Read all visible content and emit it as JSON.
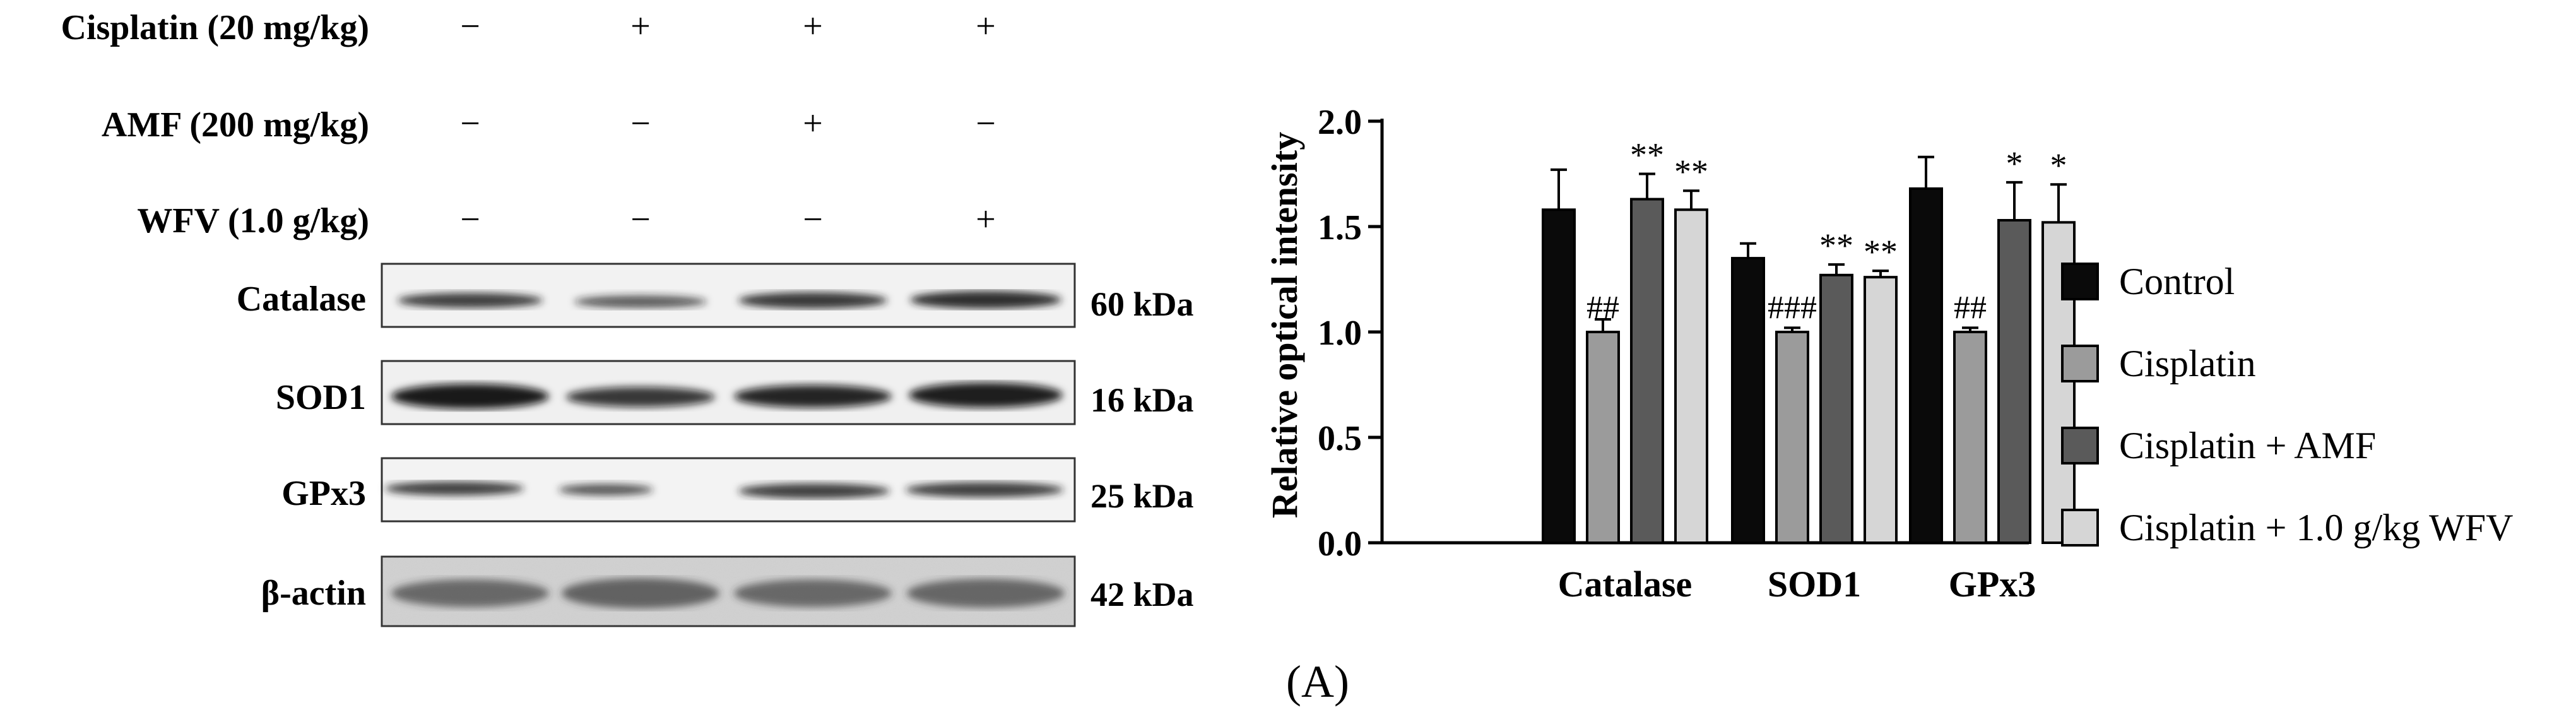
{
  "treatments": [
    {
      "label": "Cisplatin (20 mg/kg)",
      "signs": [
        "−",
        "+",
        "+",
        "+"
      ]
    },
    {
      "label": "AMF (200 mg/kg)",
      "signs": [
        "−",
        "−",
        "+",
        "−"
      ]
    },
    {
      "label": "WFV (1.0 g/kg)",
      "signs": [
        "−",
        "−",
        "−",
        "+"
      ]
    }
  ],
  "blots": [
    {
      "protein": "Catalase",
      "mw": "60 kDa"
    },
    {
      "protein": "SOD1",
      "mw": "16 kDa"
    },
    {
      "protein": "GPx3",
      "mw": "25 kDa"
    },
    {
      "protein": "β-actin",
      "mw": "42 kDa"
    }
  ],
  "panel_label": "(A)",
  "colors": {
    "control": "#0a0a0a",
    "cisplatin": "#9b9b9b",
    "amf": "#5a5a5a",
    "wfv": "#d6d6d6"
  },
  "chart_data": {
    "type": "bar",
    "title": "",
    "xlabel": "",
    "ylabel": "Relative optical intensity",
    "ylim": [
      0,
      2.0
    ],
    "yticks": [
      "0.0",
      "0.5",
      "1.0",
      "1.5",
      "2.0"
    ],
    "categories": [
      "Catalase",
      "SOD1",
      "GPx3"
    ],
    "legend_position": "right",
    "series": [
      {
        "name": "Control",
        "values": [
          1.58,
          1.35,
          1.68
        ],
        "errors": [
          0.19,
          0.07,
          0.15
        ],
        "annotations": [
          "",
          "",
          ""
        ]
      },
      {
        "name": "Cisplatin",
        "values": [
          1.0,
          1.0,
          1.0
        ],
        "errors": [
          0.06,
          0.02,
          0.02
        ],
        "annotations": [
          "##",
          "###",
          "##"
        ]
      },
      {
        "name": "Cisplatin + AMF",
        "values": [
          1.63,
          1.27,
          1.53
        ],
        "errors": [
          0.12,
          0.05,
          0.18
        ],
        "annotations": [
          "**",
          "**",
          "*"
        ]
      },
      {
        "name": "Cisplatin + 1.0 g/kg WFV",
        "values": [
          1.58,
          1.26,
          1.52
        ],
        "errors": [
          0.09,
          0.03,
          0.18
        ],
        "annotations": [
          "**",
          "**",
          "*"
        ]
      }
    ]
  }
}
